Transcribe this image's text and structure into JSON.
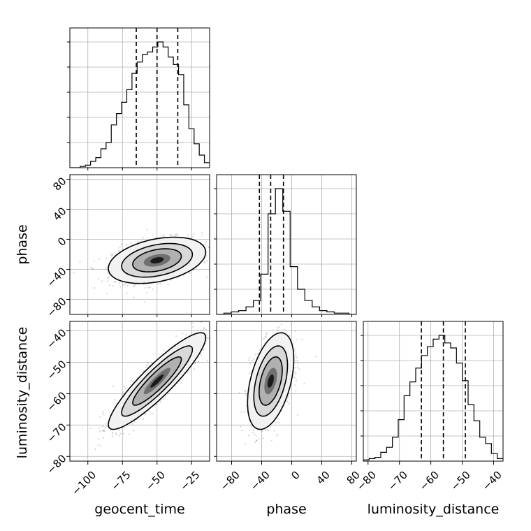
{
  "chart_data": {
    "type": "corner",
    "parameters": [
      "geocent_time",
      "phase",
      "luminosity_distance"
    ],
    "axis_labels": {
      "x": [
        "geocent_time",
        "phase",
        "luminosity_distance"
      ],
      "y": [
        "phase",
        "luminosity_distance"
      ]
    },
    "ranges": {
      "geocent_time": [
        -113,
        -12
      ],
      "phase": [
        -100,
        86
      ],
      "luminosity_distance": [
        -81.5,
        -37
      ]
    },
    "ticks": {
      "geocent_time": [
        -100,
        -75,
        -50,
        -25
      ],
      "phase": [
        -80,
        -40,
        0,
        40,
        80
      ],
      "luminosity_distance": [
        -80,
        -70,
        -60,
        -50,
        -40
      ]
    },
    "tick_labels": {
      "geocent_time": [
        "−100",
        "−75",
        "−50",
        "−25"
      ],
      "phase": [
        "−80",
        "−40",
        "0",
        "40",
        "80"
      ],
      "luminosity_distance": [
        "−80",
        "−70",
        "−60",
        "−50",
        "−40"
      ]
    },
    "grid": true,
    "histograms": {
      "geocent_time": {
        "counts": [
          0,
          0,
          1,
          2,
          5,
          8,
          15,
          20,
          34,
          43,
          52,
          62,
          75,
          84,
          90,
          92,
          96,
          100,
          96,
          88,
          82,
          74,
          50,
          31,
          19,
          10,
          4
        ],
        "quantiles": [
          -65,
          -50,
          -35
        ]
      },
      "phase": {
        "counts": [
          0,
          1,
          2,
          3,
          6,
          11,
          32,
          80,
          100,
          82,
          38,
          20,
          11,
          6,
          3,
          2,
          1,
          1,
          0
        ],
        "quantiles": [
          -43,
          -28,
          -11
        ]
      },
      "luminosity_distance": {
        "counts": [
          1,
          2,
          3,
          7,
          11,
          19,
          33,
          52,
          63,
          74,
          84,
          91,
          97,
          100,
          94,
          90,
          78,
          64,
          45,
          32,
          19,
          14,
          6,
          2
        ],
        "quantiles": [
          -63,
          -56,
          -49
        ]
      }
    },
    "pairs": [
      {
        "x": "geocent_time",
        "y": "phase",
        "center": [
          -50,
          -28
        ],
        "sd": [
          16,
          14
        ],
        "corr": 0.35
      },
      {
        "x": "geocent_time",
        "y": "luminosity_distance",
        "center": [
          -50,
          -56
        ],
        "sd": [
          16,
          7
        ],
        "corr": 0.9
      },
      {
        "x": "phase",
        "y": "luminosity_distance",
        "center": [
          -28,
          -56
        ],
        "sd": [
          14,
          7
        ],
        "corr": 0.45
      }
    ]
  }
}
